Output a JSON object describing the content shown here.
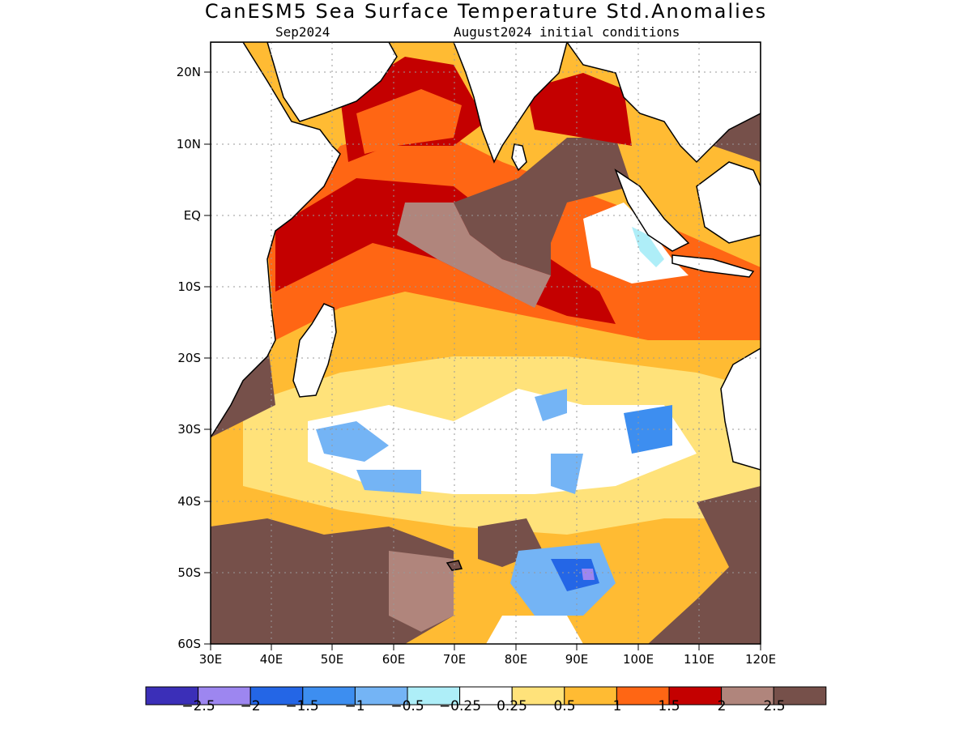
{
  "header": {
    "title": "CanESM5 Sea Surface Temperature Std.Anomalies",
    "valid_month": "Sep2024",
    "init": "August2024 initial conditions"
  },
  "axes": {
    "lat_labels": [
      "20N",
      "10N",
      "EQ",
      "10S",
      "20S",
      "30S",
      "40S",
      "50S",
      "60S"
    ],
    "lon_labels": [
      "30E",
      "40E",
      "50E",
      "60E",
      "70E",
      "80E",
      "90E",
      "100E",
      "110E",
      "120E"
    ],
    "lat_range": [
      -60,
      24
    ],
    "lon_range": [
      30,
      120
    ]
  },
  "colorbar": {
    "labels": [
      "−2.5",
      "−2",
      "−1.5",
      "−1",
      "−0.5",
      "−0.25",
      "0.25",
      "0.5",
      "1",
      "1.5",
      "2",
      "2.5"
    ],
    "colors": [
      "#3b2fb8",
      "#9d86f0",
      "#2466e6",
      "#3d8ef0",
      "#74b4f5",
      "#aeeef8",
      "#ffffff",
      "#ffe27a",
      "#ffbb33",
      "#ff6614",
      "#c40000",
      "#b0857c",
      "#76504a"
    ]
  },
  "map_colors": {
    "land": "#ffffff",
    "coast": "#000000",
    "grid": "#999999"
  }
}
